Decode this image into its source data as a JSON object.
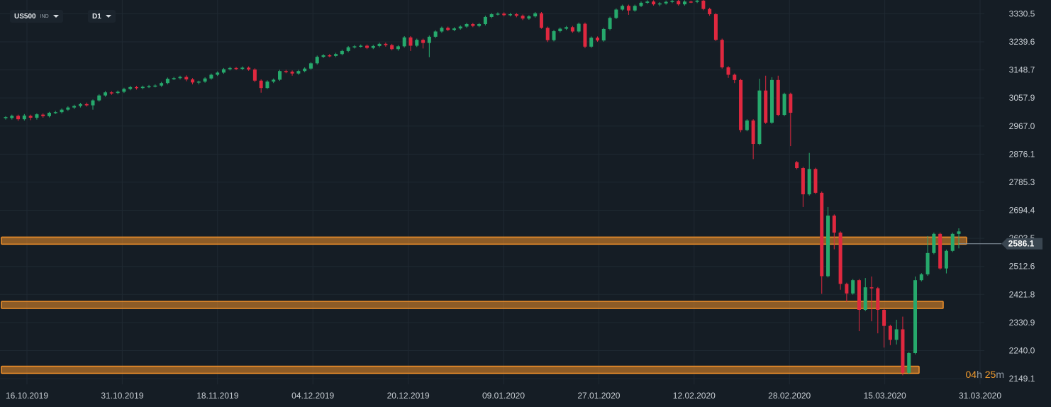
{
  "toolbar": {
    "symbol": "US500",
    "symbol_type": "IND",
    "timeframe": "D1"
  },
  "timer": {
    "hours": "04",
    "h_unit": "h",
    "minutes": "25",
    "m_unit": "m"
  },
  "colors": {
    "background": "#151d25",
    "grid": "#1f2932",
    "bull": "#26a96c",
    "bear": "#e0283f",
    "zone": "#f0902a",
    "price_tag": "#3a4651"
  },
  "chart_data": {
    "type": "candlestick",
    "symbol": "US500",
    "timeframe": "D1",
    "x_tick_labels": [
      "16.10.2019",
      "31.10.2019",
      "18.11.2019",
      "04.12.2019",
      "20.12.2019",
      "09.01.2020",
      "27.01.2020",
      "12.02.2020",
      "28.02.2020",
      "15.03.2020",
      "31.03.2020"
    ],
    "y_tick_labels": [
      "3330.5",
      "3239.6",
      "3148.7",
      "3057.9",
      "2967.0",
      "2876.1",
      "2785.3",
      "2694.4",
      "2603.5",
      "2512.6",
      "2421.8",
      "2330.9",
      "2240.0",
      "2149.1"
    ],
    "ylim": [
      2131,
      3375
    ],
    "current_price": "2586.1",
    "grid": true,
    "zones": [
      2596,
      2388,
      2178
    ],
    "candles": [
      [
        2993,
        2996,
        2988,
        2999
      ],
      [
        2993,
        3000,
        2988,
        3004
      ],
      [
        3000,
        2989,
        2984,
        3004
      ],
      [
        2989,
        3001,
        2985,
        3006
      ],
      [
        3000,
        2994,
        2986,
        3004
      ],
      [
        2994,
        3005,
        2988,
        3008
      ],
      [
        3004,
        2999,
        2994,
        3008
      ],
      [
        2999,
        3010,
        2995,
        3013
      ],
      [
        3010,
        3012,
        3006,
        3016
      ],
      [
        3012,
        3020,
        3008,
        3024
      ],
      [
        3020,
        3027,
        3016,
        3031
      ],
      [
        3027,
        3032,
        3022,
        3036
      ],
      [
        3032,
        3038,
        3027,
        3042
      ],
      [
        3038,
        3034,
        3030,
        3043
      ],
      [
        3034,
        3050,
        3020,
        3053
      ],
      [
        3050,
        3066,
        3046,
        3070
      ],
      [
        3066,
        3076,
        3062,
        3080
      ],
      [
        3076,
        3074,
        3068,
        3080
      ],
      [
        3074,
        3078,
        3070,
        3082
      ],
      [
        3078,
        3087,
        3074,
        3091
      ],
      [
        3087,
        3093,
        3083,
        3097
      ],
      [
        3093,
        3090,
        3085,
        3097
      ],
      [
        3090,
        3094,
        3086,
        3098
      ],
      [
        3094,
        3096,
        3090,
        3100
      ],
      [
        3096,
        3098,
        3092,
        3102
      ],
      [
        3098,
        3106,
        3094,
        3110
      ],
      [
        3106,
        3120,
        3102,
        3124
      ],
      [
        3120,
        3122,
        3116,
        3126
      ],
      [
        3122,
        3126,
        3118,
        3130
      ],
      [
        3126,
        3118,
        3112,
        3131
      ],
      [
        3118,
        3108,
        3102,
        3122
      ],
      [
        3108,
        3111,
        3102,
        3114
      ],
      [
        3111,
        3121,
        3107,
        3125
      ],
      [
        3121,
        3133,
        3117,
        3137
      ],
      [
        3133,
        3140,
        3129,
        3144
      ],
      [
        3140,
        3151,
        3136,
        3155
      ],
      [
        3151,
        3155,
        3147,
        3159
      ],
      [
        3155,
        3152,
        3148,
        3158
      ],
      [
        3152,
        3156,
        3148,
        3160
      ],
      [
        3156,
        3150,
        3146,
        3160
      ],
      [
        3150,
        3114,
        3109,
        3154
      ],
      [
        3114,
        3090,
        3075,
        3118
      ],
      [
        3090,
        3111,
        3087,
        3115
      ],
      [
        3111,
        3117,
        3106,
        3121
      ],
      [
        3117,
        3145,
        3113,
        3149
      ],
      [
        3145,
        3143,
        3138,
        3149
      ],
      [
        3143,
        3137,
        3130,
        3147
      ],
      [
        3137,
        3145,
        3133,
        3149
      ],
      [
        3145,
        3153,
        3141,
        3157
      ],
      [
        3153,
        3170,
        3149,
        3174
      ],
      [
        3170,
        3191,
        3166,
        3195
      ],
      [
        3191,
        3196,
        3187,
        3200
      ],
      [
        3196,
        3194,
        3190,
        3200
      ],
      [
        3194,
        3200,
        3190,
        3204
      ],
      [
        3200,
        3210,
        3196,
        3214
      ],
      [
        3210,
        3222,
        3206,
        3226
      ],
      [
        3222,
        3225,
        3218,
        3229
      ],
      [
        3225,
        3227,
        3221,
        3231
      ],
      [
        3227,
        3220,
        3216,
        3231
      ],
      [
        3220,
        3226,
        3216,
        3230
      ],
      [
        3226,
        3233,
        3222,
        3237
      ],
      [
        3233,
        3229,
        3224,
        3237
      ],
      [
        3229,
        3216,
        3212,
        3233
      ],
      [
        3216,
        3225,
        3211,
        3229
      ],
      [
        3225,
        3254,
        3221,
        3258
      ],
      [
        3254,
        3227,
        3210,
        3258
      ],
      [
        3227,
        3246,
        3223,
        3250
      ],
      [
        3246,
        3236,
        3218,
        3250
      ],
      [
        3236,
        3256,
        3190,
        3260
      ],
      [
        3256,
        3273,
        3252,
        3277
      ],
      [
        3273,
        3285,
        3269,
        3289
      ],
      [
        3285,
        3278,
        3274,
        3289
      ],
      [
        3278,
        3283,
        3274,
        3287
      ],
      [
        3283,
        3289,
        3279,
        3293
      ],
      [
        3289,
        3297,
        3285,
        3301
      ],
      [
        3297,
        3291,
        3287,
        3301
      ],
      [
        3291,
        3297,
        3287,
        3301
      ],
      [
        3297,
        3320,
        3293,
        3324
      ],
      [
        3320,
        3329,
        3316,
        3333
      ],
      [
        3329,
        3331,
        3325,
        3335
      ],
      [
        3331,
        3326,
        3322,
        3335
      ],
      [
        3326,
        3329,
        3322,
        3333
      ],
      [
        3329,
        3324,
        3319,
        3333
      ],
      [
        3324,
        3315,
        3310,
        3328
      ],
      [
        3315,
        3322,
        3311,
        3326
      ],
      [
        3322,
        3332,
        3318,
        3336
      ],
      [
        3332,
        3285,
        3282,
        3336
      ],
      [
        3285,
        3245,
        3239,
        3289
      ],
      [
        3245,
        3274,
        3241,
        3278
      ],
      [
        3274,
        3282,
        3270,
        3286
      ],
      [
        3282,
        3287,
        3278,
        3291
      ],
      [
        3287,
        3273,
        3269,
        3291
      ],
      [
        3273,
        3298,
        3269,
        3302
      ],
      [
        3298,
        3224,
        3219,
        3302
      ],
      [
        3224,
        3253,
        3220,
        3257
      ],
      [
        3253,
        3244,
        3240,
        3257
      ],
      [
        3244,
        3281,
        3240,
        3285
      ],
      [
        3281,
        3317,
        3277,
        3321
      ],
      [
        3317,
        3344,
        3313,
        3348
      ],
      [
        3344,
        3356,
        3340,
        3360
      ],
      [
        3356,
        3341,
        3327,
        3360
      ],
      [
        3341,
        3356,
        3337,
        3360
      ],
      [
        3356,
        3366,
        3352,
        3370
      ],
      [
        3366,
        3370,
        3362,
        3374
      ],
      [
        3370,
        3361,
        3357,
        3374
      ],
      [
        3361,
        3364,
        3355,
        3368
      ],
      [
        3364,
        3369,
        3360,
        3373
      ],
      [
        3369,
        3372,
        3365,
        3376
      ],
      [
        3372,
        3361,
        3357,
        3376
      ],
      [
        3361,
        3370,
        3357,
        3374
      ],
      [
        3370,
        3369,
        3365,
        3373
      ],
      [
        3369,
        3373,
        3365,
        3377
      ],
      [
        3373,
        3346,
        3342,
        3377
      ],
      [
        3346,
        3329,
        3324,
        3350
      ],
      [
        3329,
        3246,
        3242,
        3333
      ],
      [
        3246,
        3157,
        3153,
        3250
      ],
      [
        3157,
        3133,
        3123,
        3161
      ],
      [
        3133,
        3116,
        3106,
        3137
      ],
      [
        3116,
        2954,
        2947,
        3120
      ],
      [
        2954,
        2985,
        2950,
        2989
      ],
      [
        2985,
        2909,
        2860,
        2989
      ],
      [
        2909,
        3082,
        2905,
        3120
      ],
      [
        3082,
        2978,
        2974,
        3130
      ],
      [
        2978,
        3116,
        2974,
        3125
      ],
      [
        3116,
        3003,
        2999,
        3130
      ],
      [
        3003,
        3071,
        2999,
        3075
      ],
      [
        3071,
        3010,
        2902,
        3075
      ],
      [
        2850,
        2831,
        2827,
        2854
      ],
      [
        2831,
        2746,
        2705,
        2835
      ],
      [
        2746,
        2828,
        2742,
        2880
      ],
      [
        2828,
        2751,
        2747,
        2832
      ],
      [
        2751,
        2481,
        2424,
        2755
      ],
      [
        2481,
        2677,
        2477,
        2705
      ],
      [
        2677,
        2622,
        2568,
        2681
      ],
      [
        2622,
        2456,
        2437,
        2626
      ],
      [
        2456,
        2425,
        2398,
        2460
      ],
      [
        2425,
        2468,
        2421,
        2472
      ],
      [
        2468,
        2372,
        2303,
        2472
      ],
      [
        2372,
        2445,
        2368,
        2475
      ],
      [
        2445,
        2442,
        2335,
        2480
      ],
      [
        2442,
        2372,
        2296,
        2446
      ],
      [
        2372,
        2320,
        2250,
        2376
      ],
      [
        2320,
        2275,
        2258,
        2324
      ],
      [
        2275,
        2309,
        2260,
        2340
      ],
      [
        2309,
        2168,
        2160,
        2350
      ],
      [
        2168,
        2232,
        2164,
        2236
      ],
      [
        2232,
        2468,
        2228,
        2480
      ],
      [
        2468,
        2487,
        2464,
        2491
      ],
      [
        2487,
        2556,
        2482,
        2611
      ],
      [
        2556,
        2618,
        2552,
        2622
      ],
      [
        2618,
        2506,
        2502,
        2622
      ],
      [
        2506,
        2563,
        2490,
        2567
      ],
      [
        2563,
        2618,
        2559,
        2622
      ],
      [
        2618,
        2626,
        2571,
        2636
      ]
    ]
  }
}
